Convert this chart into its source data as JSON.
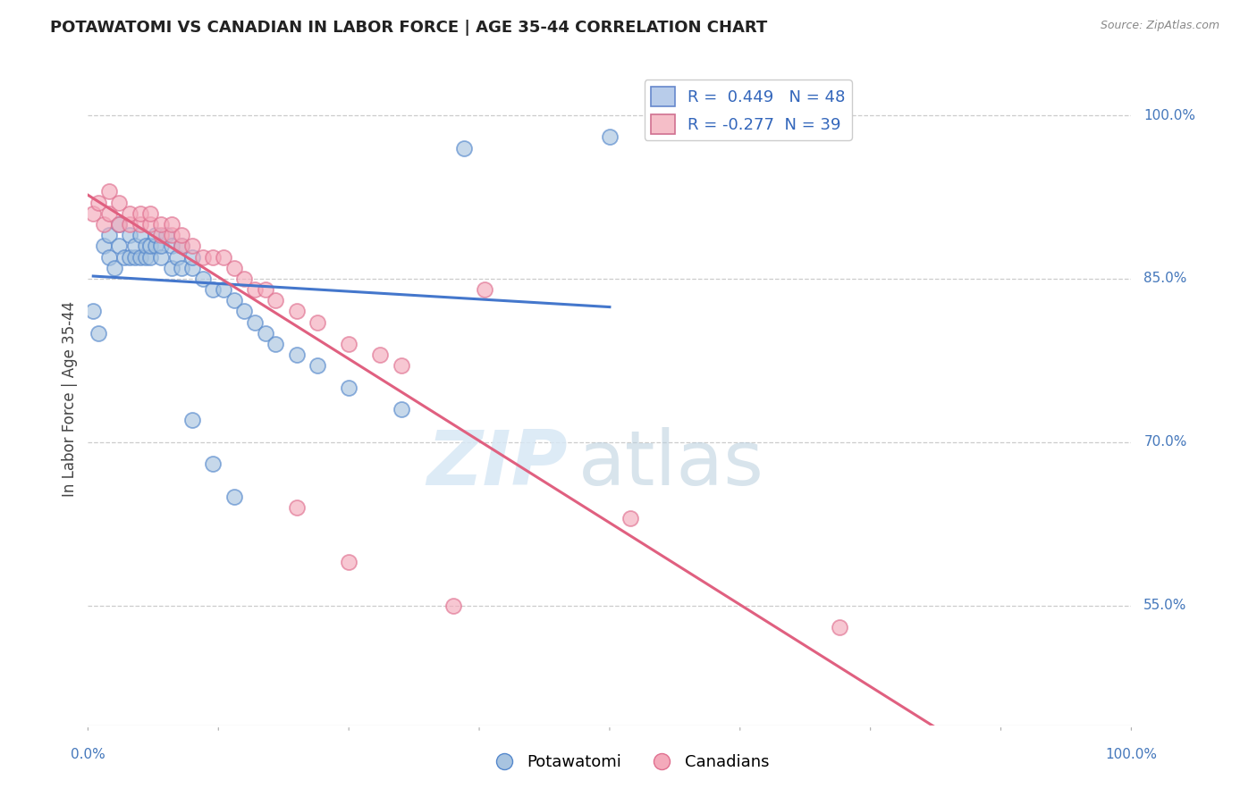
{
  "title": "POTAWATOMI VS CANADIAN IN LABOR FORCE | AGE 35-44 CORRELATION CHART",
  "source": "Source: ZipAtlas.com",
  "ylabel": "In Labor Force | Age 35-44",
  "ytick_labels": [
    "100.0%",
    "85.0%",
    "70.0%",
    "55.0%"
  ],
  "ytick_values": [
    1.0,
    0.85,
    0.7,
    0.55
  ],
  "xlim": [
    0.0,
    1.0
  ],
  "ylim": [
    0.44,
    1.04
  ],
  "legend": {
    "blue_R": 0.449,
    "blue_N": 48,
    "pink_R": -0.277,
    "pink_N": 39
  },
  "blue_fill": "#A8C4E0",
  "blue_edge": "#5588CC",
  "pink_fill": "#F4AABB",
  "pink_edge": "#E07090",
  "blue_line_color": "#4477CC",
  "pink_line_color": "#E06080",
  "potawatomi_x": [
    0.005,
    0.01,
    0.015,
    0.02,
    0.02,
    0.025,
    0.03,
    0.03,
    0.035,
    0.04,
    0.04,
    0.045,
    0.045,
    0.05,
    0.05,
    0.055,
    0.055,
    0.06,
    0.06,
    0.065,
    0.065,
    0.07,
    0.07,
    0.075,
    0.08,
    0.08,
    0.085,
    0.09,
    0.09,
    0.1,
    0.1,
    0.11,
    0.12,
    0.13,
    0.14,
    0.15,
    0.16,
    0.17,
    0.18,
    0.2,
    0.22,
    0.25,
    0.3,
    0.1,
    0.12,
    0.14,
    0.36,
    0.5
  ],
  "potawatomi_y": [
    0.82,
    0.8,
    0.88,
    0.87,
    0.89,
    0.86,
    0.88,
    0.9,
    0.87,
    0.87,
    0.89,
    0.87,
    0.88,
    0.87,
    0.89,
    0.87,
    0.88,
    0.87,
    0.88,
    0.88,
    0.89,
    0.87,
    0.88,
    0.89,
    0.86,
    0.88,
    0.87,
    0.86,
    0.88,
    0.86,
    0.87,
    0.85,
    0.84,
    0.84,
    0.83,
    0.82,
    0.81,
    0.8,
    0.79,
    0.78,
    0.77,
    0.75,
    0.73,
    0.72,
    0.68,
    0.65,
    0.97,
    0.98
  ],
  "canadian_x": [
    0.005,
    0.01,
    0.015,
    0.02,
    0.02,
    0.03,
    0.03,
    0.04,
    0.04,
    0.05,
    0.05,
    0.06,
    0.06,
    0.07,
    0.07,
    0.08,
    0.08,
    0.09,
    0.09,
    0.1,
    0.11,
    0.12,
    0.13,
    0.14,
    0.15,
    0.16,
    0.17,
    0.18,
    0.2,
    0.22,
    0.25,
    0.28,
    0.3,
    0.38,
    0.52,
    0.72,
    0.2,
    0.25,
    0.35
  ],
  "canadian_y": [
    0.91,
    0.92,
    0.9,
    0.91,
    0.93,
    0.9,
    0.92,
    0.9,
    0.91,
    0.9,
    0.91,
    0.9,
    0.91,
    0.89,
    0.9,
    0.89,
    0.9,
    0.88,
    0.89,
    0.88,
    0.87,
    0.87,
    0.87,
    0.86,
    0.85,
    0.84,
    0.84,
    0.83,
    0.82,
    0.81,
    0.79,
    0.78,
    0.77,
    0.84,
    0.63,
    0.53,
    0.64,
    0.59,
    0.55
  ]
}
